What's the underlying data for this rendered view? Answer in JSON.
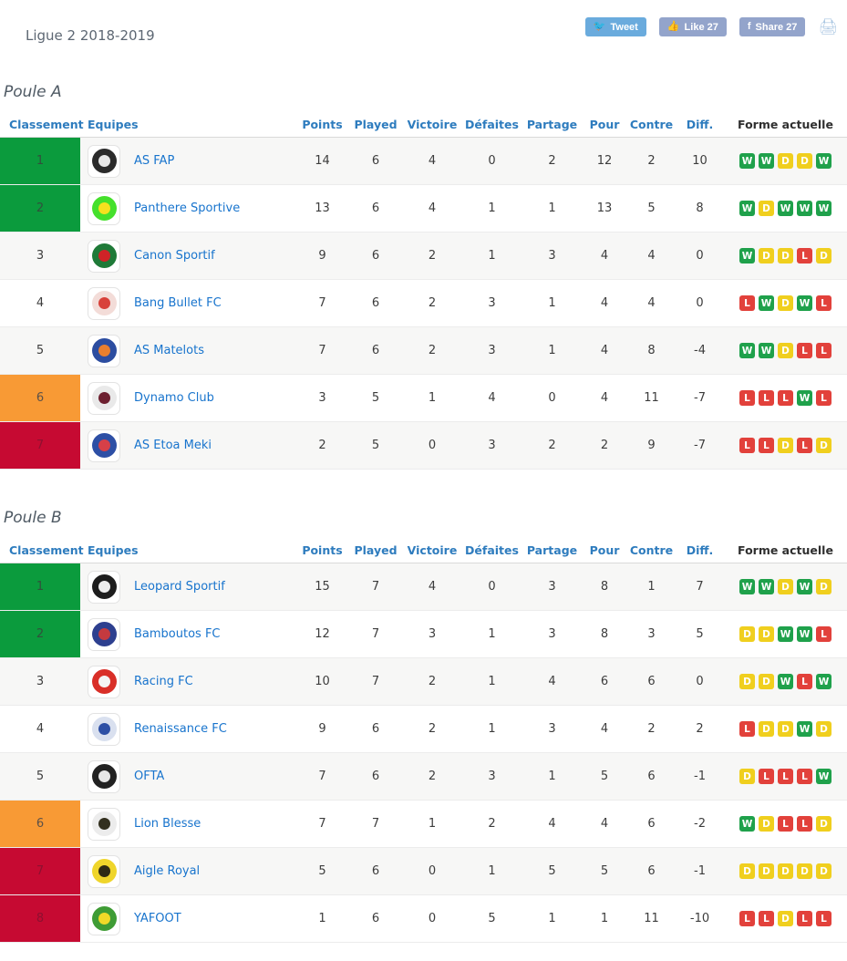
{
  "page": {
    "title": "Ligue 2 2018-2019"
  },
  "social": {
    "tweet_label": "Tweet",
    "like_label": "Like 27",
    "share_label": "Share 27"
  },
  "table_headers": [
    "Classement",
    "Equipes",
    "Points",
    "Played",
    "Victoire",
    "Défaites",
    "Partage",
    "Pour",
    "Contre",
    "Diff.",
    "Forme actuelle"
  ],
  "colors": {
    "header_blue": "#2e7cbe",
    "team_link_blue": "#1874cd",
    "rank_green": "#0b9b3d",
    "rank_orange": "#f89a35",
    "rank_red": "#c60a32",
    "badge_win": "#1fa14b",
    "badge_draw": "#f0cf1e",
    "badge_loss": "#e2413b"
  },
  "groups": [
    {
      "name": "Poule A",
      "rows": [
        {
          "classement": "1",
          "tier": "green",
          "team": "AS FAP",
          "logo": {
            "outer": "#2b2b2b",
            "core": "#e8e8e8"
          },
          "points": "14",
          "played": "6",
          "victoire": "4",
          "defaites": "0",
          "partage": "2",
          "pour": "12",
          "contre": "2",
          "diff": "10",
          "forme": [
            "W",
            "W",
            "D",
            "D",
            "W"
          ]
        },
        {
          "classement": "2",
          "tier": "green",
          "team": "Panthere Sportive",
          "logo": {
            "outer": "#45e02c",
            "core": "#f5e11e"
          },
          "points": "13",
          "played": "6",
          "victoire": "4",
          "defaites": "1",
          "partage": "1",
          "pour": "13",
          "contre": "5",
          "diff": "8",
          "forme": [
            "W",
            "D",
            "W",
            "W",
            "W"
          ]
        },
        {
          "classement": "3",
          "tier": "none",
          "team": "Canon Sportif",
          "logo": {
            "outer": "#1f7a38",
            "core": "#cf2327"
          },
          "points": "9",
          "played": "6",
          "victoire": "2",
          "defaites": "1",
          "partage": "3",
          "pour": "4",
          "contre": "4",
          "diff": "0",
          "forme": [
            "W",
            "D",
            "D",
            "L",
            "D"
          ]
        },
        {
          "classement": "4",
          "tier": "none",
          "team": "Bang Bullet FC",
          "logo": {
            "outer": "#f3dcd8",
            "core": "#d8413a"
          },
          "points": "7",
          "played": "6",
          "victoire": "2",
          "defaites": "3",
          "partage": "1",
          "pour": "4",
          "contre": "4",
          "diff": "0",
          "forme": [
            "L",
            "W",
            "D",
            "W",
            "L"
          ]
        },
        {
          "classement": "5",
          "tier": "none",
          "team": "AS Matelots",
          "logo": {
            "outer": "#2c4da0",
            "core": "#e97f2e"
          },
          "points": "7",
          "played": "6",
          "victoire": "2",
          "defaites": "3",
          "partage": "1",
          "pour": "4",
          "contre": "8",
          "diff": "-4",
          "forme": [
            "W",
            "W",
            "D",
            "L",
            "L"
          ]
        },
        {
          "classement": "6",
          "tier": "orange",
          "team": "Dynamo Club",
          "logo": {
            "outer": "#e9e9e9",
            "core": "#6d2030"
          },
          "points": "3",
          "played": "5",
          "victoire": "1",
          "defaites": "4",
          "partage": "0",
          "pour": "4",
          "contre": "11",
          "diff": "-7",
          "forme": [
            "L",
            "L",
            "L",
            "W",
            "L"
          ]
        },
        {
          "classement": "7",
          "tier": "red",
          "team": "AS Etoa Meki",
          "logo": {
            "outer": "#2d4fa5",
            "core": "#d64048"
          },
          "points": "2",
          "played": "5",
          "victoire": "0",
          "defaites": "3",
          "partage": "2",
          "pour": "2",
          "contre": "9",
          "diff": "-7",
          "forme": [
            "L",
            "L",
            "D",
            "L",
            "D"
          ]
        }
      ]
    },
    {
      "name": "Poule B",
      "rows": [
        {
          "classement": "1",
          "tier": "green",
          "team": "Leopard Sportif",
          "logo": {
            "outer": "#1d1d1d",
            "core": "#ededed"
          },
          "points": "15",
          "played": "7",
          "victoire": "4",
          "defaites": "0",
          "partage": "3",
          "pour": "8",
          "contre": "1",
          "diff": "7",
          "forme": [
            "W",
            "W",
            "D",
            "W",
            "D"
          ]
        },
        {
          "classement": "2",
          "tier": "green",
          "team": "Bamboutos FC",
          "logo": {
            "outer": "#2d3f8f",
            "core": "#c43a3f"
          },
          "points": "12",
          "played": "7",
          "victoire": "3",
          "defaites": "1",
          "partage": "3",
          "pour": "8",
          "contre": "3",
          "diff": "5",
          "forme": [
            "D",
            "D",
            "W",
            "W",
            "L"
          ]
        },
        {
          "classement": "3",
          "tier": "none",
          "team": "Racing FC",
          "logo": {
            "outer": "#d92f28",
            "core": "#f4f4f4"
          },
          "points": "10",
          "played": "7",
          "victoire": "2",
          "defaites": "1",
          "partage": "4",
          "pour": "6",
          "contre": "6",
          "diff": "0",
          "forme": [
            "D",
            "D",
            "W",
            "L",
            "W"
          ]
        },
        {
          "classement": "4",
          "tier": "none",
          "team": "Renaissance FC",
          "logo": {
            "outer": "#d9e0ef",
            "core": "#2d4fa5"
          },
          "points": "9",
          "played": "6",
          "victoire": "2",
          "defaites": "1",
          "partage": "3",
          "pour": "4",
          "contre": "2",
          "diff": "2",
          "forme": [
            "L",
            "D",
            "D",
            "W",
            "D"
          ]
        },
        {
          "classement": "5",
          "tier": "none",
          "team": "OFTA",
          "logo": {
            "outer": "#222222",
            "core": "#e6e6e6"
          },
          "points": "7",
          "played": "6",
          "victoire": "2",
          "defaites": "3",
          "partage": "1",
          "pour": "5",
          "contre": "6",
          "diff": "-1",
          "forme": [
            "D",
            "L",
            "L",
            "L",
            "W"
          ]
        },
        {
          "classement": "6",
          "tier": "orange",
          "team": "Lion Blesse",
          "logo": {
            "outer": "#ececec",
            "core": "#33301f"
          },
          "points": "7",
          "played": "7",
          "victoire": "1",
          "defaites": "2",
          "partage": "4",
          "pour": "4",
          "contre": "6",
          "diff": "-2",
          "forme": [
            "W",
            "D",
            "L",
            "L",
            "D"
          ]
        },
        {
          "classement": "7",
          "tier": "red",
          "team": "Aigle Royal",
          "logo": {
            "outer": "#efd52b",
            "core": "#2e2a14"
          },
          "points": "5",
          "played": "6",
          "victoire": "0",
          "defaites": "1",
          "partage": "5",
          "pour": "5",
          "contre": "6",
          "diff": "-1",
          "forme": [
            "D",
            "D",
            "D",
            "D",
            "D"
          ]
        },
        {
          "classement": "8",
          "tier": "red",
          "team": "YAFOOT",
          "logo": {
            "outer": "#3f9c35",
            "core": "#f0d928"
          },
          "points": "1",
          "played": "6",
          "victoire": "0",
          "defaites": "5",
          "partage": "1",
          "pour": "1",
          "contre": "11",
          "diff": "-10",
          "forme": [
            "L",
            "L",
            "D",
            "L",
            "L"
          ]
        }
      ]
    }
  ]
}
